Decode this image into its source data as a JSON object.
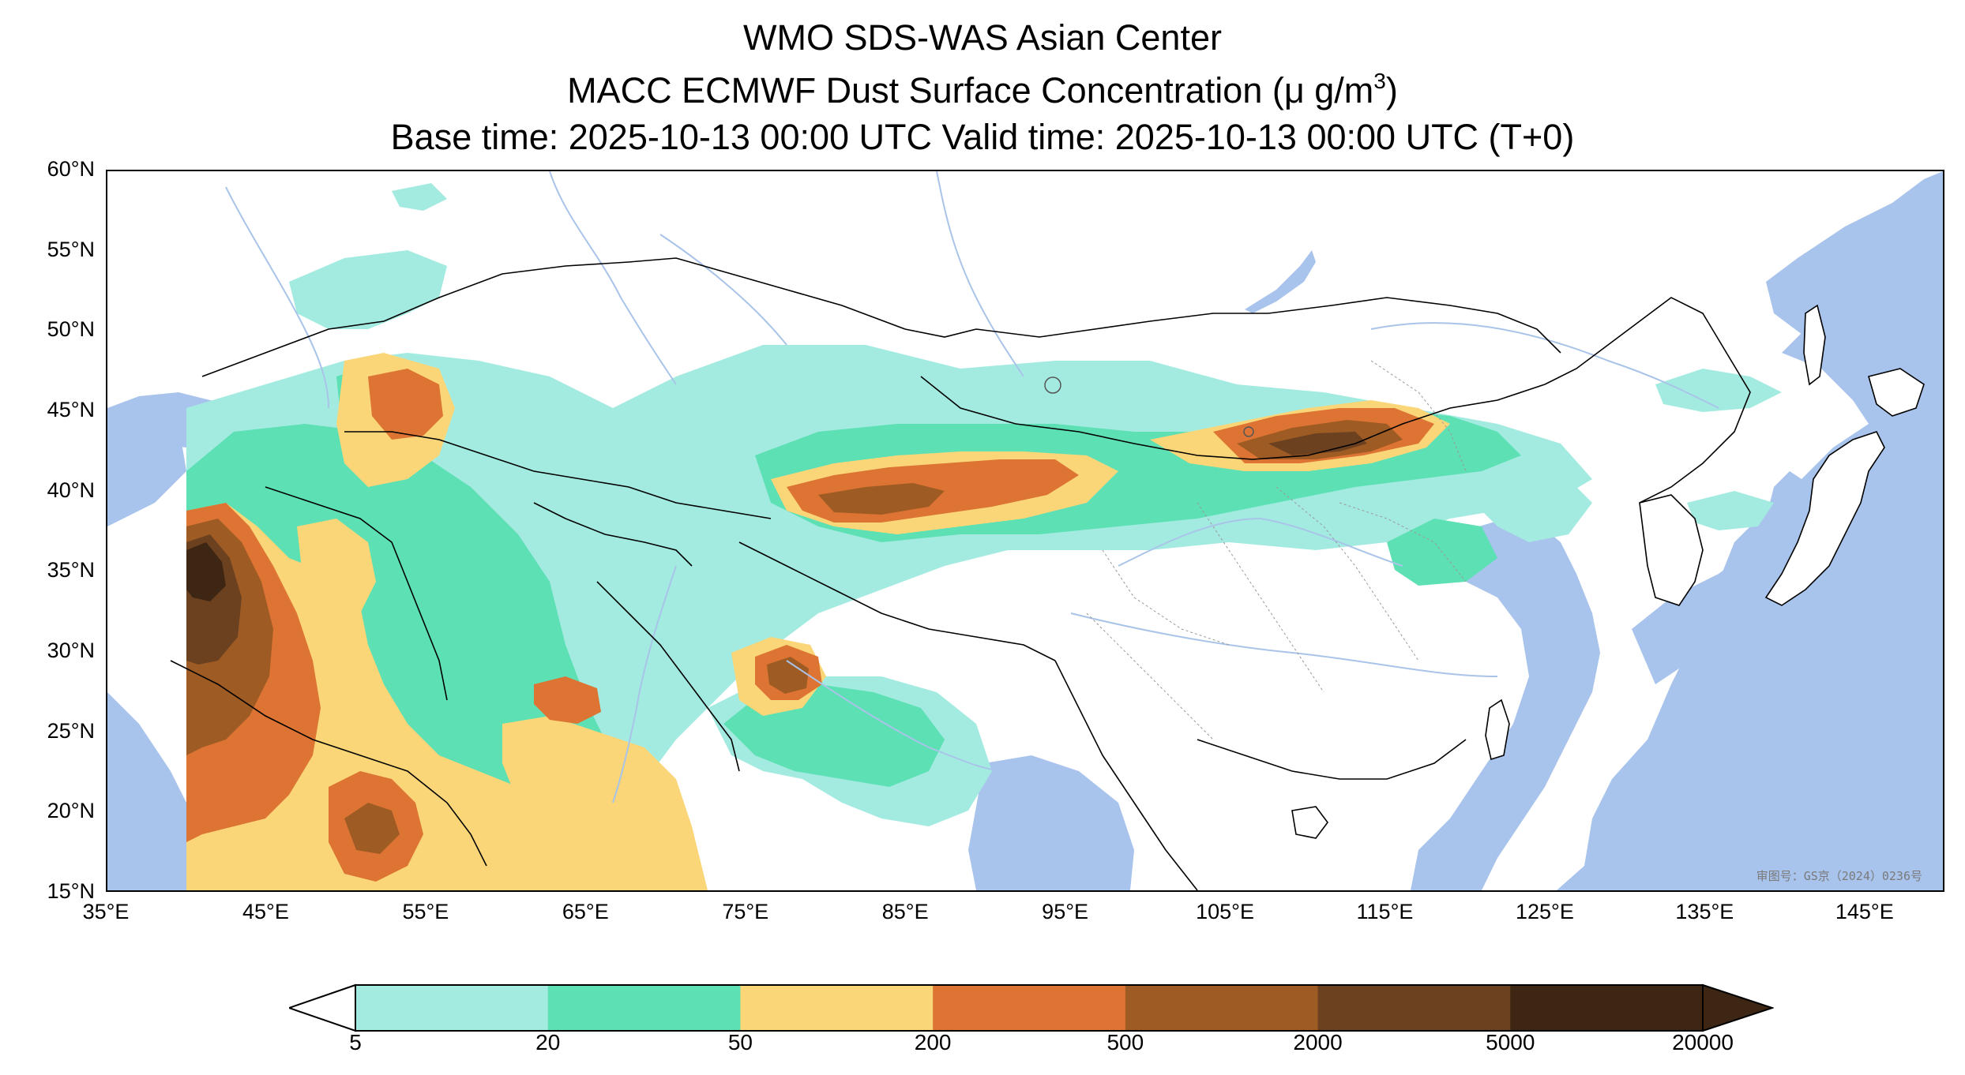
{
  "title": {
    "line1": "WMO SDS-WAS Asian Center",
    "line2_prefix": "MACC ECMWF Dust Surface Concentration (",
    "line2_unit": "μ g/m",
    "line2_sup": "3",
    "line2_suffix": ")",
    "line3": "Base time: 2025-10-13 00:00 UTC Valid time: 2025-10-13 00:00 UTC (T+0)"
  },
  "map": {
    "lon_range": [
      35,
      150
    ],
    "lat_range": [
      15,
      60
    ],
    "lat_ticks": [
      "60°N",
      "55°N",
      "50°N",
      "45°N",
      "40°N",
      "35°N",
      "30°N",
      "25°N",
      "20°N",
      "15°N"
    ],
    "lon_ticks": [
      "35°E",
      "45°E",
      "55°E",
      "65°E",
      "75°E",
      "85°E",
      "95°E",
      "105°E",
      "115°E",
      "125°E",
      "135°E",
      "145°E"
    ],
    "stamp": "审图号：GS京（2024）0236号",
    "colors": {
      "sea": "#a8c3ec",
      "land": "#ffffff",
      "border": "#000000",
      "river": "#a9c4e8"
    }
  },
  "colorbar": {
    "labels": [
      "5",
      "20",
      "50",
      "200",
      "500",
      "2000",
      "5000",
      "20000"
    ],
    "colors": [
      "#a3ebe0",
      "#5ce0b4",
      "#fad678",
      "#dd7433",
      "#9e5b24",
      "#6b4120",
      "#3d2613"
    ]
  }
}
